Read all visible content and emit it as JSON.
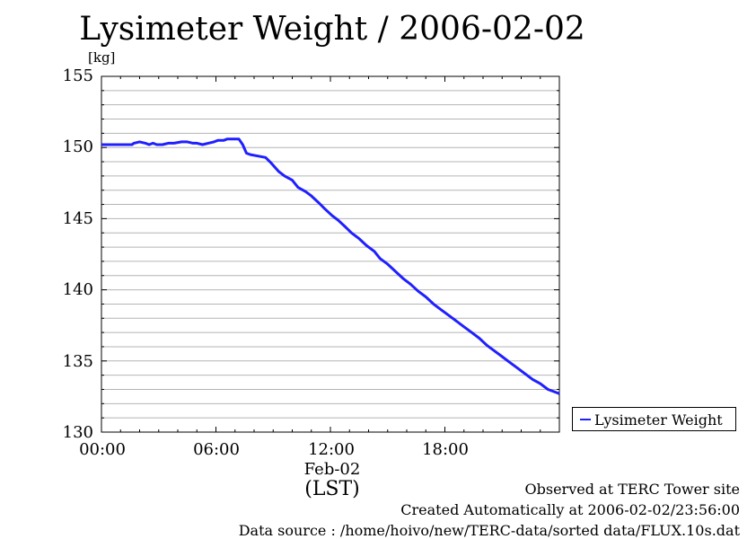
{
  "chart_data": {
    "type": "line",
    "title": "Lysimeter Weight / 2006-02-02",
    "ylabel": "[kg]",
    "ylim": [
      130,
      155
    ],
    "yticks": [
      "130",
      "135",
      "140",
      "145",
      "150",
      "155"
    ],
    "xlim_hours": [
      0,
      24
    ],
    "xticks": [
      "00:00",
      "06:00",
      "12:00",
      "18:00"
    ],
    "date_label": "Feb-02",
    "zone_label": "(LST)",
    "grid": true,
    "legend_position": "right, below plot",
    "series": [
      {
        "name": "Lysimeter Weight",
        "color": "#2020ff",
        "x_hours": [
          0.0,
          0.8,
          1.6,
          1.7,
          2.0,
          2.3,
          2.5,
          2.7,
          2.9,
          3.2,
          3.5,
          3.8,
          4.2,
          4.5,
          4.8,
          5.0,
          5.3,
          5.6,
          5.9,
          6.1,
          6.4,
          6.6,
          6.9,
          7.2,
          7.4,
          7.6,
          7.8,
          8.2,
          8.6,
          8.9,
          9.3,
          9.6,
          10.0,
          10.3,
          10.7,
          11.0,
          11.4,
          11.7,
          12.1,
          12.4,
          12.8,
          13.1,
          13.5,
          13.9,
          14.3,
          14.6,
          15.0,
          15.4,
          15.8,
          16.2,
          16.6,
          17.0,
          17.4,
          17.8,
          18.2,
          18.6,
          19.0,
          19.4,
          19.8,
          20.2,
          20.6,
          21.0,
          21.4,
          21.8,
          22.2,
          22.6,
          23.0,
          23.4,
          23.8,
          24.0
        ],
        "values": [
          150.2,
          150.2,
          150.2,
          150.3,
          150.4,
          150.3,
          150.2,
          150.3,
          150.2,
          150.2,
          150.3,
          150.3,
          150.4,
          150.4,
          150.3,
          150.3,
          150.2,
          150.3,
          150.4,
          150.5,
          150.5,
          150.6,
          150.6,
          150.6,
          150.2,
          149.6,
          149.5,
          149.4,
          149.3,
          148.9,
          148.3,
          148.0,
          147.7,
          147.2,
          146.9,
          146.6,
          146.1,
          145.7,
          145.2,
          144.9,
          144.4,
          144.0,
          143.6,
          143.1,
          142.7,
          142.2,
          141.8,
          141.3,
          140.8,
          140.4,
          139.9,
          139.5,
          139.0,
          138.6,
          138.2,
          137.8,
          137.4,
          137.0,
          136.6,
          136.1,
          135.7,
          135.3,
          134.9,
          134.5,
          134.1,
          133.7,
          133.4,
          133.0,
          132.8,
          132.7
        ]
      }
    ]
  },
  "footer": {
    "observed": "Observed at TERC Tower site",
    "created": "Created Automatically at 2006-02-02/23:56:00",
    "source": "Data source : /home/hoivo/new/TERC-data/sorted  data/FLUX.10s.dat"
  }
}
